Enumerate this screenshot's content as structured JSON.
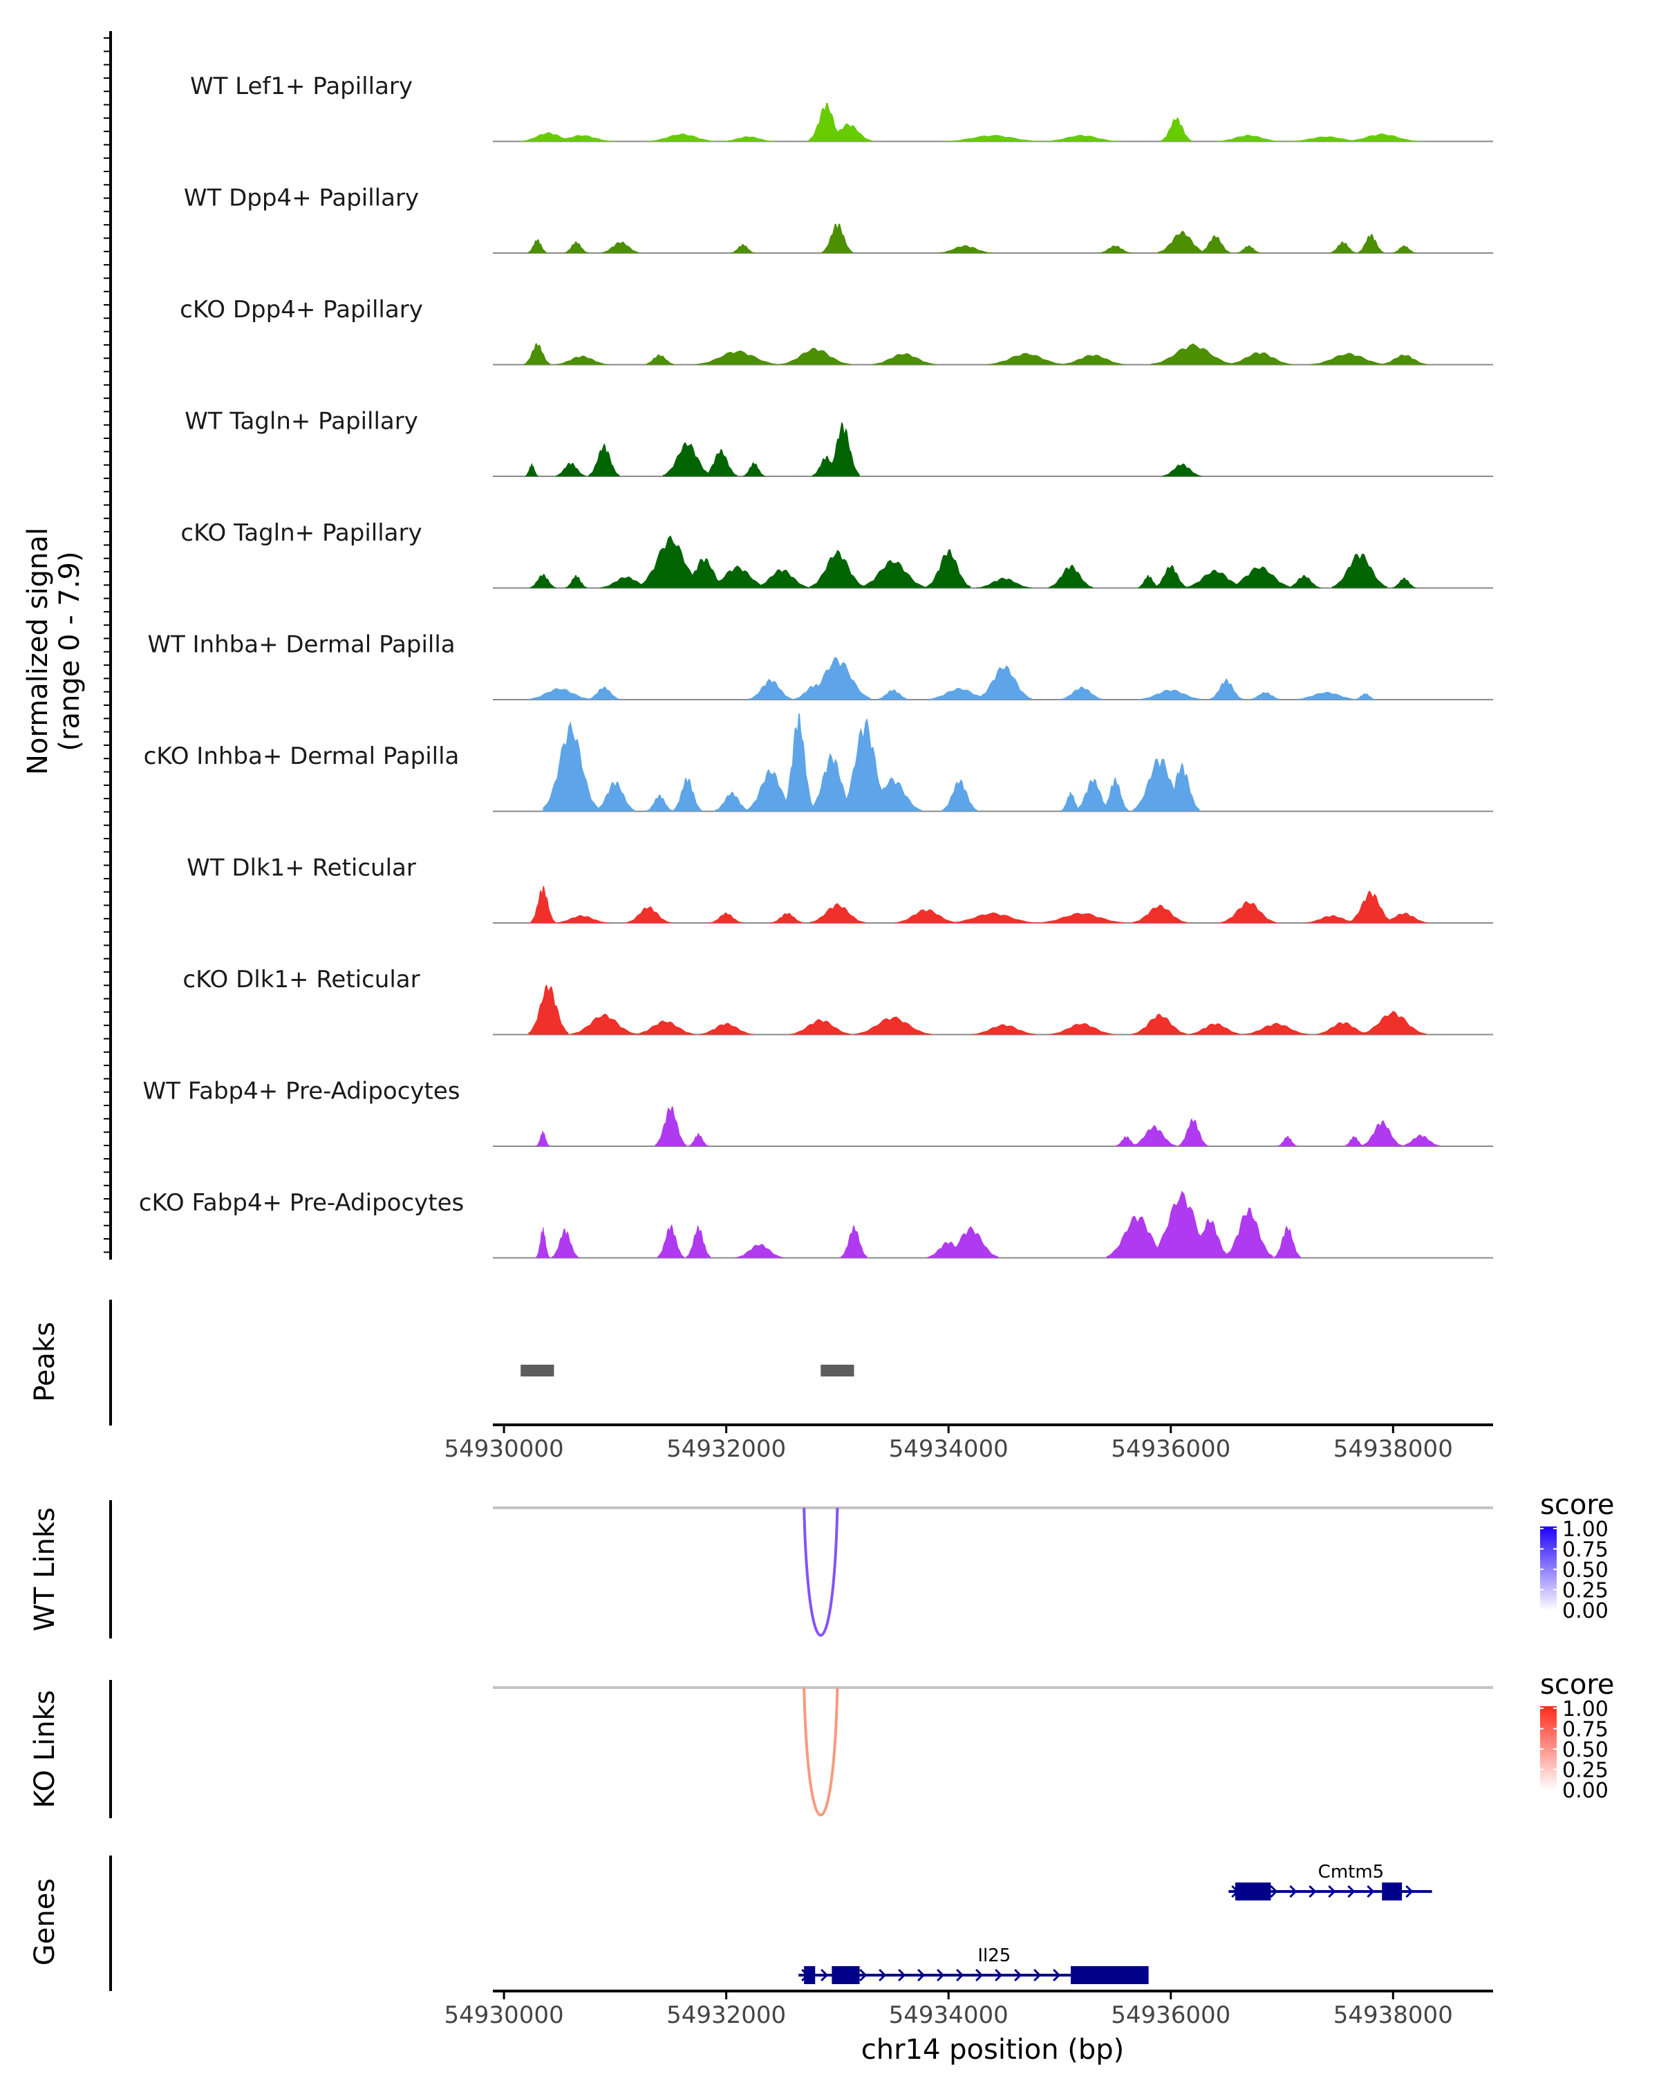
{
  "chart_data": {
    "type": "area",
    "title": "",
    "region": {
      "chrom": "chr14",
      "start": 54929900,
      "end": 54938900
    },
    "xlabel": "chr14 position (bp)",
    "x_ticks": [
      54930000,
      54932000,
      54934000,
      54936000,
      54938000
    ],
    "x_tick_labels": [
      "54930000",
      "54932000",
      "54934000",
      "54936000",
      "54938000"
    ],
    "coverage": {
      "ylabel": "Normalized signal",
      "ylabel_range": "(range 0 - 7.9)",
      "ylim": [
        0,
        7.9
      ],
      "tracks": [
        {
          "label": "WT Lef1+ Papillary",
          "color": "#66CC00",
          "peaks": [
            [
              54930400,
              0.7,
              260
            ],
            [
              54930700,
              0.5,
              300
            ],
            [
              54931600,
              0.6,
              320
            ],
            [
              54932200,
              0.4,
              250
            ],
            [
              54932900,
              3.0,
              160
            ],
            [
              54933100,
              1.4,
              220
            ],
            [
              54934400,
              0.5,
              450
            ],
            [
              54935200,
              0.5,
              350
            ],
            [
              54936050,
              1.9,
              140
            ],
            [
              54936700,
              0.5,
              300
            ],
            [
              54937400,
              0.4,
              350
            ],
            [
              54937900,
              0.6,
              350
            ]
          ]
        },
        {
          "label": "WT Dpp4+ Papillary",
          "color": "#4C8F00",
          "peaks": [
            [
              54930300,
              1.1,
              90
            ],
            [
              54930650,
              0.9,
              110
            ],
            [
              54931050,
              0.9,
              180
            ],
            [
              54932150,
              0.7,
              110
            ],
            [
              54933000,
              2.4,
              140
            ],
            [
              54934150,
              0.6,
              250
            ],
            [
              54935500,
              0.6,
              150
            ],
            [
              54936100,
              1.7,
              220
            ],
            [
              54936400,
              1.4,
              140
            ],
            [
              54936700,
              0.6,
              110
            ],
            [
              54937550,
              0.9,
              120
            ],
            [
              54937800,
              1.5,
              120
            ],
            [
              54938100,
              0.6,
              110
            ]
          ]
        },
        {
          "label": "cKO Dpp4+ Papillary",
          "color": "#4C8F00",
          "peaks": [
            [
              54930300,
              1.7,
              120
            ],
            [
              54930700,
              0.7,
              250
            ],
            [
              54931400,
              0.8,
              140
            ],
            [
              54932100,
              1.1,
              380
            ],
            [
              54932800,
              1.3,
              320
            ],
            [
              54933600,
              0.9,
              300
            ],
            [
              54934700,
              0.9,
              360
            ],
            [
              54935300,
              0.8,
              300
            ],
            [
              54936200,
              1.6,
              380
            ],
            [
              54936800,
              1.0,
              300
            ],
            [
              54937600,
              0.9,
              350
            ],
            [
              54938100,
              0.8,
              220
            ]
          ]
        },
        {
          "label": "WT Tagln+ Papillary",
          "color": "#006400",
          "peaks": [
            [
              54930250,
              1.0,
              60
            ],
            [
              54930600,
              1.1,
              140
            ],
            [
              54930900,
              2.5,
              140
            ],
            [
              54931650,
              2.7,
              220
            ],
            [
              54931950,
              2.1,
              150
            ],
            [
              54932250,
              1.1,
              100
            ],
            [
              54932900,
              1.6,
              130
            ],
            [
              54933050,
              4.2,
              150
            ],
            [
              54936100,
              1.0,
              180
            ]
          ]
        },
        {
          "label": "cKO Tagln+ Papillary",
          "color": "#006400",
          "peaks": [
            [
              54930350,
              1.1,
              120
            ],
            [
              54930650,
              1.0,
              100
            ],
            [
              54931100,
              0.9,
              240
            ],
            [
              54931500,
              4.0,
              300
            ],
            [
              54931800,
              2.4,
              200
            ],
            [
              54932100,
              1.7,
              280
            ],
            [
              54932500,
              1.5,
              250
            ],
            [
              54933000,
              2.9,
              250
            ],
            [
              54933500,
              2.2,
              300
            ],
            [
              54934000,
              3.0,
              200
            ],
            [
              54934500,
              0.8,
              250
            ],
            [
              54935100,
              1.8,
              200
            ],
            [
              54935800,
              1.0,
              100
            ],
            [
              54936000,
              1.8,
              150
            ],
            [
              54936400,
              1.4,
              280
            ],
            [
              54936800,
              1.7,
              300
            ],
            [
              54937200,
              1.0,
              150
            ],
            [
              54937700,
              2.8,
              250
            ],
            [
              54938100,
              0.8,
              110
            ]
          ]
        },
        {
          "label": "WT Inhba+ Dermal Papilla",
          "color": "#5DA5E8",
          "peaks": [
            [
              54930500,
              0.9,
              300
            ],
            [
              54930900,
              1.0,
              150
            ],
            [
              54932400,
              1.6,
              200
            ],
            [
              54932800,
              1.2,
              200
            ],
            [
              54933000,
              3.3,
              300
            ],
            [
              54933500,
              0.8,
              150
            ],
            [
              54934100,
              0.9,
              300
            ],
            [
              54934500,
              2.7,
              250
            ],
            [
              54935200,
              1.0,
              200
            ],
            [
              54936000,
              0.8,
              300
            ],
            [
              54936500,
              1.6,
              150
            ],
            [
              54936850,
              0.6,
              150
            ],
            [
              54937400,
              0.6,
              300
            ],
            [
              54937750,
              0.5,
              100
            ]
          ]
        },
        {
          "label": "cKO Inhba+ Dermal Papilla",
          "color": "#5DA5E8",
          "peaks": [
            [
              54930600,
              6.8,
              250
            ],
            [
              54931000,
              2.4,
              180
            ],
            [
              54931400,
              1.3,
              120
            ],
            [
              54931650,
              2.7,
              130
            ],
            [
              54932050,
              1.5,
              160
            ],
            [
              54932400,
              3.3,
              220
            ],
            [
              54932650,
              7.6,
              140
            ],
            [
              54932950,
              4.5,
              200
            ],
            [
              54933250,
              7.2,
              220
            ],
            [
              54933500,
              2.6,
              260
            ],
            [
              54934100,
              2.5,
              160
            ],
            [
              54935100,
              1.5,
              90
            ],
            [
              54935300,
              2.6,
              160
            ],
            [
              54935500,
              2.6,
              120
            ],
            [
              54935900,
              4.3,
              240
            ],
            [
              54936100,
              3.7,
              160
            ]
          ]
        },
        {
          "label": "WT Dlk1+ Reticular",
          "color": "#F0302A",
          "peaks": [
            [
              54930350,
              2.9,
              110
            ],
            [
              54930700,
              0.6,
              250
            ],
            [
              54931300,
              1.3,
              200
            ],
            [
              54932000,
              0.8,
              150
            ],
            [
              54932550,
              0.8,
              150
            ],
            [
              54933000,
              1.5,
              250
            ],
            [
              54933800,
              1.1,
              280
            ],
            [
              54934400,
              0.8,
              400
            ],
            [
              54935200,
              0.8,
              400
            ],
            [
              54935900,
              1.4,
              250
            ],
            [
              54936700,
              1.7,
              250
            ],
            [
              54937450,
              0.6,
              250
            ],
            [
              54937800,
              2.5,
              200
            ],
            [
              54938100,
              0.8,
              220
            ]
          ]
        },
        {
          "label": "cKO Dlk1+ Reticular",
          "color": "#F0302A",
          "peaks": [
            [
              54930400,
              4.0,
              180
            ],
            [
              54930900,
              1.6,
              300
            ],
            [
              54931450,
              1.1,
              280
            ],
            [
              54932000,
              0.9,
              250
            ],
            [
              54932850,
              1.2,
              280
            ],
            [
              54933500,
              1.4,
              350
            ],
            [
              54934500,
              0.8,
              300
            ],
            [
              54935200,
              0.9,
              300
            ],
            [
              54935900,
              1.6,
              250
            ],
            [
              54936400,
              0.9,
              250
            ],
            [
              54936950,
              0.9,
              300
            ],
            [
              54937550,
              1.0,
              250
            ],
            [
              54938000,
              1.8,
              300
            ]
          ]
        },
        {
          "label": "WT Fabp4+ Pre-Adipocytes",
          "color": "#B03AEF",
          "peaks": [
            [
              54930350,
              1.2,
              60
            ],
            [
              54931500,
              3.2,
              140
            ],
            [
              54931750,
              1.0,
              90
            ],
            [
              54935600,
              0.8,
              100
            ],
            [
              54935850,
              1.6,
              200
            ],
            [
              54936200,
              2.2,
              130
            ],
            [
              54937050,
              0.8,
              90
            ],
            [
              54937650,
              0.8,
              90
            ],
            [
              54937900,
              2.0,
              180
            ],
            [
              54938250,
              0.9,
              180
            ]
          ]
        },
        {
          "label": "cKO Fabp4+ Pre-Adipocytes",
          "color": "#B03AEF",
          "peaks": [
            [
              54930350,
              2.4,
              60
            ],
            [
              54930550,
              2.3,
              120
            ],
            [
              54931500,
              2.6,
              120
            ],
            [
              54931750,
              2.5,
              110
            ],
            [
              54932300,
              1.1,
              220
            ],
            [
              54933150,
              2.5,
              120
            ],
            [
              54934000,
              1.3,
              200
            ],
            [
              54934200,
              2.4,
              250
            ],
            [
              54935700,
              3.4,
              280
            ],
            [
              54936100,
              5.1,
              300
            ],
            [
              54936350,
              3.1,
              180
            ],
            [
              54936700,
              3.9,
              220
            ],
            [
              54937050,
              2.5,
              120
            ]
          ]
        }
      ]
    },
    "peaks_track": {
      "label": "Peaks",
      "regions": [
        [
          54930150,
          54930450
        ],
        [
          54932850,
          54933150
        ]
      ],
      "color": "#5E5E5E"
    },
    "links": [
      {
        "label": "WT Links",
        "legend_title": "score",
        "color": "#8453F7",
        "low": "#FFFFFF",
        "high": "#1F00FF",
        "start": 54932700,
        "end": 54933000,
        "score": 0.62
      },
      {
        "label": "KO Links",
        "legend_title": "score",
        "color": "#F79A7E",
        "low": "#FFFFFF",
        "high": "#FF2A1A",
        "start": 54932700,
        "end": 54933000,
        "score": 0.45
      }
    ],
    "legend_ticks": [
      "1.00",
      "0.75",
      "0.50",
      "0.25",
      "0.00"
    ],
    "genes": {
      "label": "Genes",
      "color": "#00008B",
      "items": [
        {
          "name": "Cmtm5",
          "strand": "+",
          "start": 54936520,
          "end": 54938350,
          "exons": [
            [
              54936580,
              54936900
            ],
            [
              54937900,
              54938080
            ]
          ]
        },
        {
          "name": "Il25",
          "strand": "+",
          "start": 54932650,
          "end": 54935800,
          "exons": [
            [
              54932700,
              54932800
            ],
            [
              54932950,
              54933200
            ],
            [
              54935100,
              54935800
            ]
          ]
        }
      ]
    }
  }
}
